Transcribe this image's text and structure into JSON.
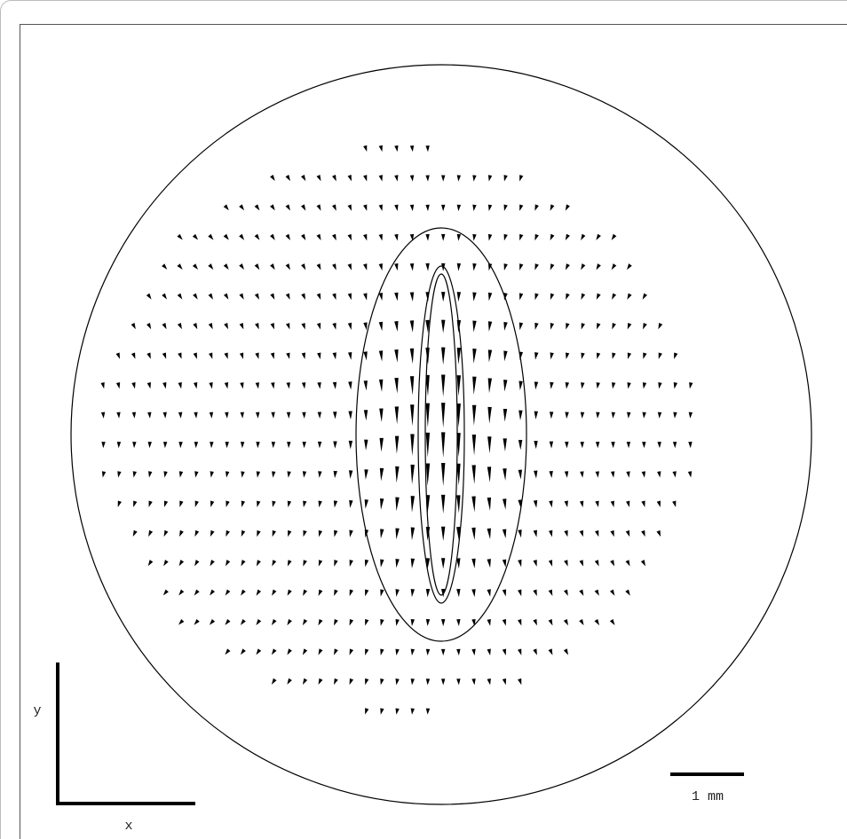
{
  "axes": {
    "x_label": "x",
    "y_label": "y"
  },
  "scale_bar": {
    "label": "1 mm"
  }
}
